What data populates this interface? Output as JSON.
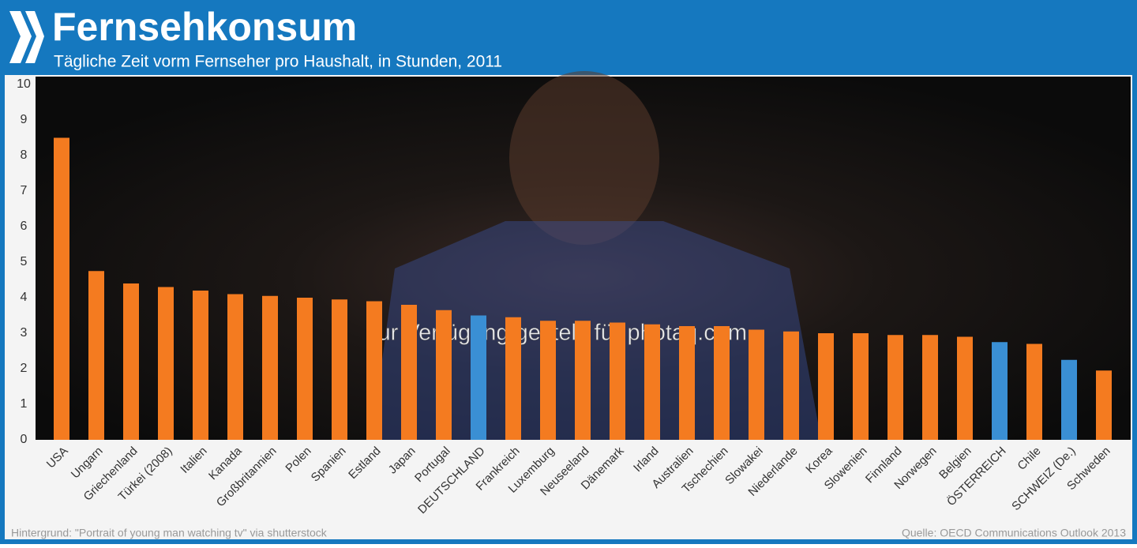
{
  "chart_data": {
    "type": "bar",
    "title": "Fernsehkonsum",
    "subtitle": "Tägliche Zeit vorm Fernseher pro Haushalt, in Stunden, 2011",
    "categories": [
      "USA",
      "Ungarn",
      "Griechenland",
      "Türkei (2008)",
      "Italien",
      "Kanada",
      "Großbritannien",
      "Polen",
      "Spanien",
      "Estland",
      "Japan",
      "Portugal",
      "DEUTSCHLAND",
      "Frankreich",
      "Luxemburg",
      "Neuseeland",
      "Dänemark",
      "Irland",
      "Australien",
      "Tschechien",
      "Slowakei",
      "Niederlande",
      "Korea",
      "Slowenien",
      "Finnland",
      "Norwegen",
      "Belgien",
      "ÖSTERREICH",
      "Chile",
      "SCHWEIZ (De.)",
      "Schweden"
    ],
    "values": [
      8.5,
      4.75,
      4.4,
      4.3,
      4.2,
      4.1,
      4.05,
      4.0,
      3.95,
      3.9,
      3.8,
      3.65,
      3.5,
      3.45,
      3.35,
      3.35,
      3.3,
      3.25,
      3.2,
      3.2,
      3.1,
      3.05,
      3.0,
      3.0,
      2.95,
      2.95,
      2.9,
      2.75,
      2.7,
      2.25,
      1.95
    ],
    "colors": [
      "#f47b20",
      "#f47b20",
      "#f47b20",
      "#f47b20",
      "#f47b20",
      "#f47b20",
      "#f47b20",
      "#f47b20",
      "#f47b20",
      "#f47b20",
      "#f47b20",
      "#f47b20",
      "#3a8fd4",
      "#f47b20",
      "#f47b20",
      "#f47b20",
      "#f47b20",
      "#f47b20",
      "#f47b20",
      "#f47b20",
      "#f47b20",
      "#f47b20",
      "#f47b20",
      "#f47b20",
      "#f47b20",
      "#f47b20",
      "#f47b20",
      "#3a8fd4",
      "#f47b20",
      "#3a8fd4",
      "#f47b20"
    ],
    "ylim": [
      0,
      10
    ],
    "yticks": [
      0,
      1,
      2,
      3,
      4,
      5,
      6,
      7,
      8,
      9,
      10
    ],
    "grid": false,
    "watermark": "zur Verfügung gestellt für photaq.com",
    "footnote": "Hintergrund: \"Portrait of young man watching tv\" via shutterstock",
    "source": "Quelle: OECD Communications Outlook 2013"
  }
}
